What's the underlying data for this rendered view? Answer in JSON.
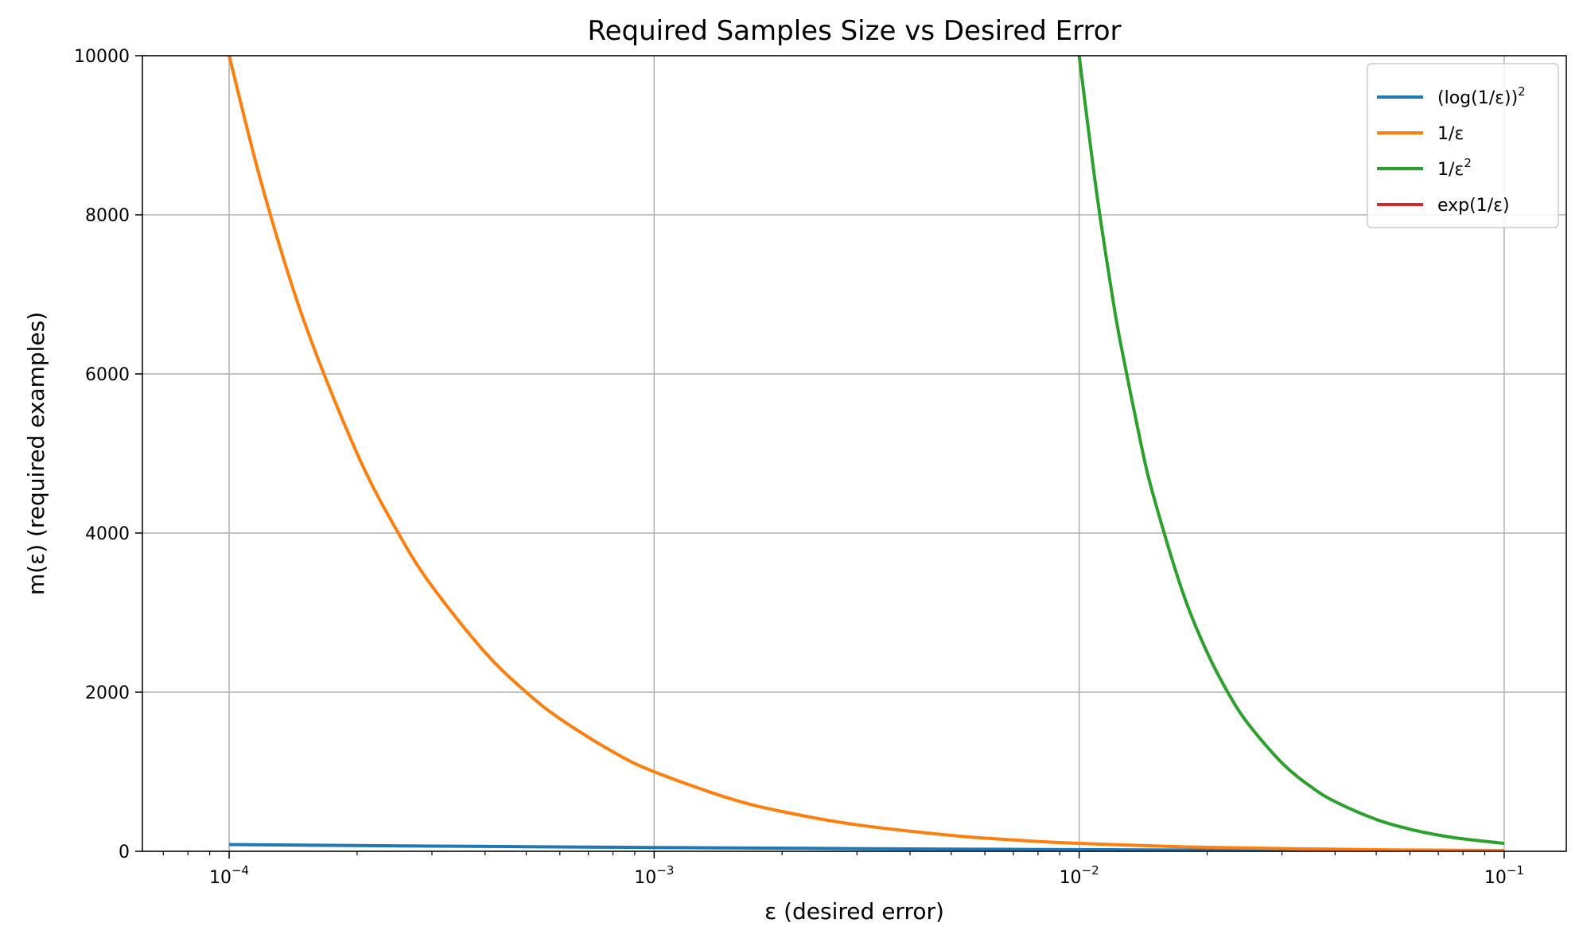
{
  "chart_data": {
    "type": "line",
    "title": "Required Samples Size vs Desired Error",
    "xlabel": "ε (desired error)",
    "ylabel": "m(ε) (required examples)",
    "xscale": "log",
    "xlim": [
      6.25e-05,
      0.14
    ],
    "ylim": [
      0,
      10000
    ],
    "grid": true,
    "legend_position": "top-right",
    "x_ticks": [
      {
        "value": 0.0001,
        "base": "10",
        "exp": "−4"
      },
      {
        "value": 0.001,
        "base": "10",
        "exp": "−3"
      },
      {
        "value": 0.01,
        "base": "10",
        "exp": "−2"
      },
      {
        "value": 0.1,
        "base": "10",
        "exp": "−1"
      }
    ],
    "y_ticks": [
      {
        "value": 0,
        "label": "0"
      },
      {
        "value": 2000,
        "label": "2000"
      },
      {
        "value": 4000,
        "label": "4000"
      },
      {
        "value": 6000,
        "label": "6000"
      },
      {
        "value": 8000,
        "label": "8000"
      },
      {
        "value": 10000,
        "label": "10000"
      }
    ],
    "series": [
      {
        "name": "(log(1/ε))²",
        "legend_main": "(log(1/ε))",
        "legend_sup": "2",
        "color": "#1f77b4",
        "x": [
          0.0001,
          0.0002,
          0.0005,
          0.001,
          0.002,
          0.005,
          0.01,
          0.02,
          0.05,
          0.1
        ],
        "y": [
          84.8,
          72.5,
          57.8,
          47.7,
          38.6,
          28.1,
          21.2,
          15.3,
          9.0,
          5.3
        ]
      },
      {
        "name": "1/ε",
        "legend_main": "1/ε",
        "legend_sup": "",
        "color": "#ff7f0e",
        "x": [
          0.0001,
          0.00012,
          0.00015,
          0.0002,
          0.00025,
          0.0003,
          0.0004,
          0.0005,
          0.0006,
          0.0008,
          0.001,
          0.0015,
          0.002,
          0.003,
          0.005,
          0.007,
          0.01,
          0.02,
          0.05,
          0.1
        ],
        "y": [
          10000,
          8333,
          6667,
          5000,
          4000,
          3333,
          2500,
          2000,
          1667,
          1250,
          1000,
          667,
          500,
          333,
          200,
          143,
          100,
          50,
          20,
          10
        ]
      },
      {
        "name": "1/ε²",
        "legend_main": "1/ε",
        "legend_sup": "2",
        "color": "#2ca02c",
        "x": [
          0.01,
          0.011,
          0.012,
          0.0125,
          0.014,
          0.015,
          0.0175,
          0.02,
          0.0225,
          0.025,
          0.03,
          0.035,
          0.04,
          0.05,
          0.06,
          0.07,
          0.08,
          0.1
        ],
        "y": [
          10000,
          8264,
          6944,
          6400,
          5102,
          4444,
          3265,
          2500,
          1975,
          1600,
          1111,
          816,
          625,
          400,
          278,
          204,
          156,
          100
        ]
      },
      {
        "name": "exp(1/ε)",
        "legend_main": "exp(1/ε)",
        "legend_sup": "",
        "color": "#d62728",
        "x": [],
        "y": []
      }
    ]
  }
}
